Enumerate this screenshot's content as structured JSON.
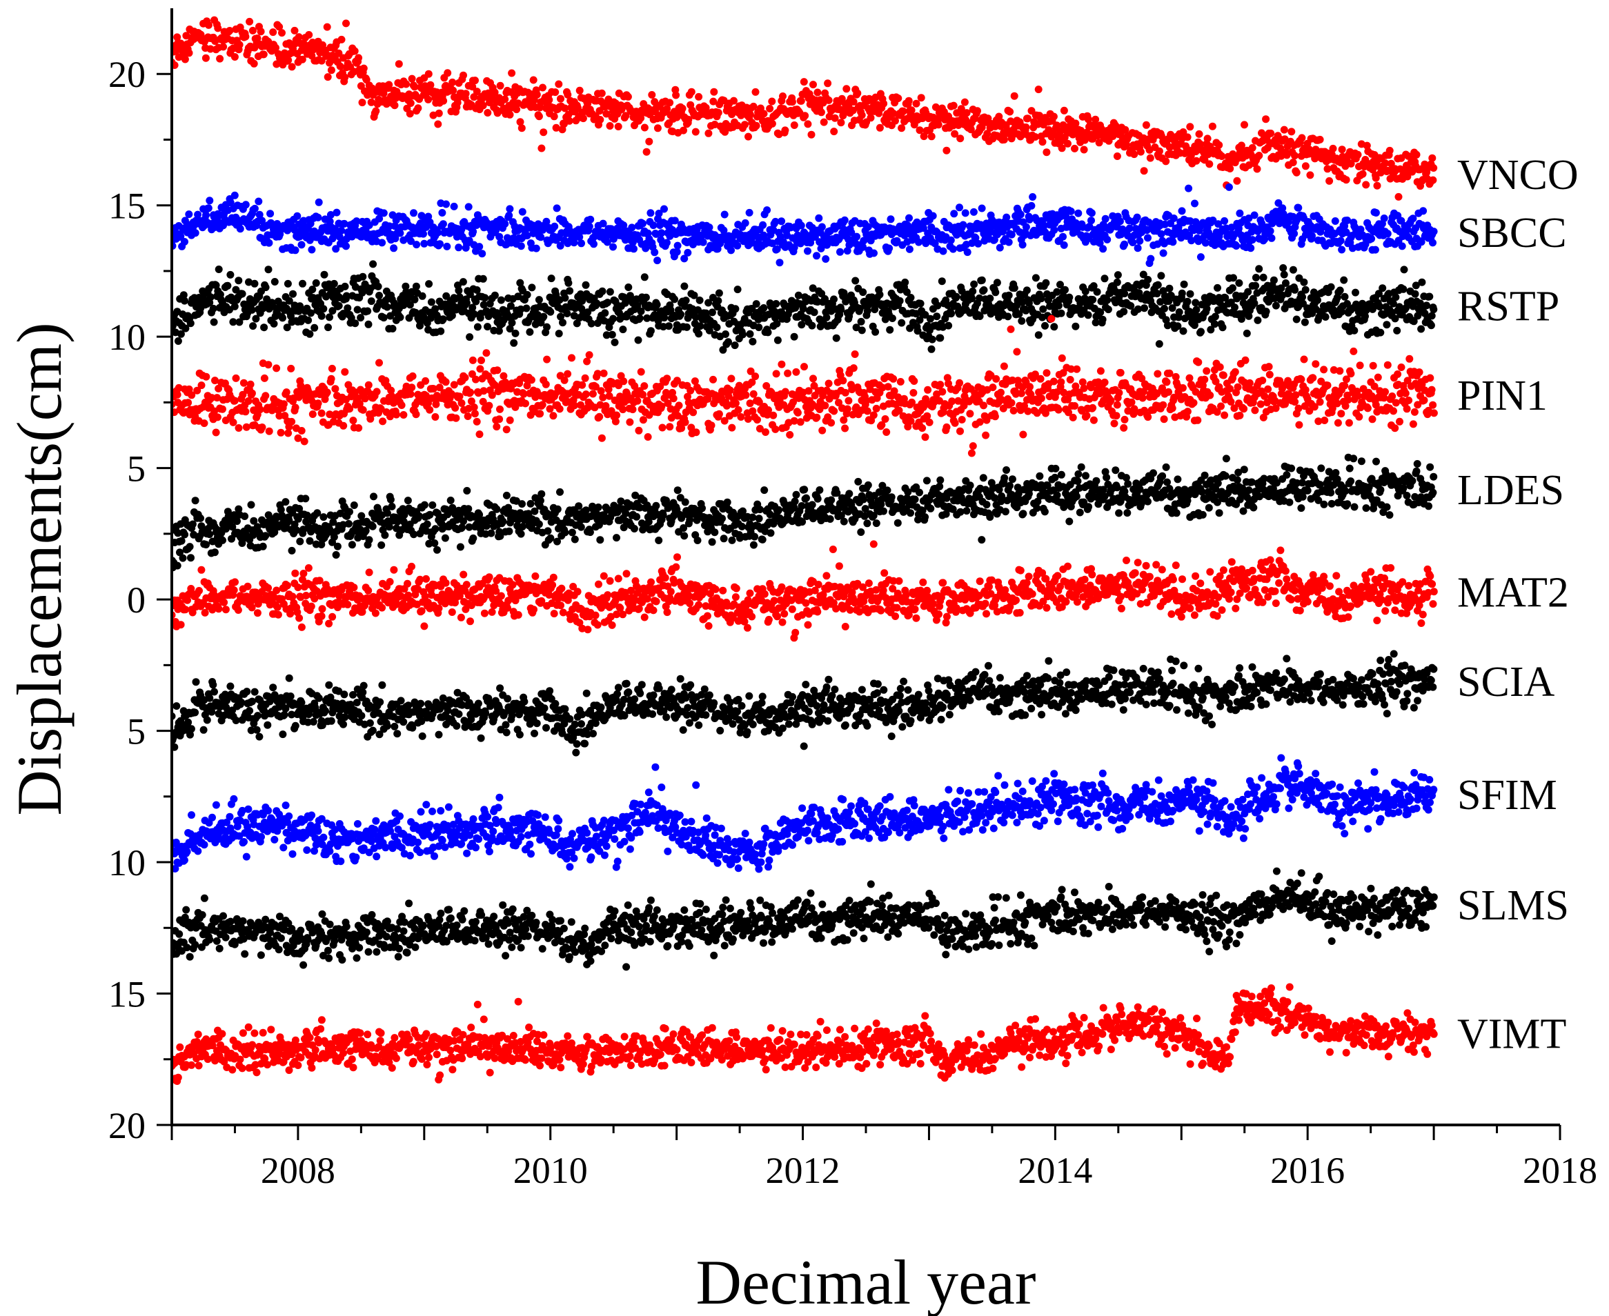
{
  "chart_data": {
    "type": "scatter",
    "title": "",
    "xlabel": "Decimal year",
    "ylabel": "Displacements(cm)",
    "xlim": [
      2007.0,
      2018.0
    ],
    "ylim": [
      -20,
      22.5
    ],
    "y_inverted_display": true,
    "x_tick_labels": [
      "2008",
      "2010",
      "2012",
      "2014",
      "2016",
      "2018"
    ],
    "x_ticks": [
      2008,
      2010,
      2012,
      2014,
      2016,
      2018
    ],
    "y_tick_labels": [
      "20",
      "15",
      "10",
      "5",
      "0",
      "5",
      "10",
      "15",
      "20"
    ],
    "y_ticks": [
      20,
      15,
      10,
      5,
      0,
      -5,
      -10,
      -15,
      -20
    ],
    "grid": false,
    "data_range_x": [
      2007.0,
      2017.0
    ],
    "series": [
      {
        "name": "VNCO",
        "color": "#ff0000",
        "noise": 0.35,
        "x": [
          2007.0,
          2007.2,
          2007.35,
          2007.8,
          2008.3,
          2008.45,
          2008.55,
          2009.0,
          2009.5,
          2010.0,
          2011.0,
          2011.8,
          2012.0,
          2012.5,
          2013.0,
          2013.5,
          2014.0,
          2014.5,
          2015.0,
          2015.4,
          2015.7,
          2016.0,
          2016.5,
          2017.0
        ],
        "y": [
          20.8,
          21.6,
          21.4,
          21.0,
          20.7,
          20.5,
          19.2,
          19.3,
          19.1,
          18.8,
          18.5,
          18.3,
          18.9,
          18.7,
          18.3,
          18.0,
          17.8,
          17.6,
          17.3,
          16.6,
          17.5,
          17.0,
          16.6,
          16.2
        ]
      },
      {
        "name": "SBCC",
        "color": "#0000ff",
        "noise": 0.35,
        "x": [
          2007.0,
          2007.3,
          2008.0,
          2009.0,
          2010.0,
          2011.0,
          2012.0,
          2013.0,
          2014.0,
          2015.0,
          2015.5,
          2015.8,
          2016.2,
          2017.0
        ],
        "y": [
          13.9,
          14.6,
          14.0,
          14.1,
          14.0,
          13.8,
          13.8,
          14.0,
          14.2,
          14.0,
          13.8,
          14.6,
          13.9,
          14.0
        ]
      },
      {
        "name": "RSTP",
        "color": "#000000",
        "noise": 0.45,
        "x": [
          2007.0,
          2007.3,
          2008.0,
          2008.5,
          2009.0,
          2010.0,
          2011.0,
          2011.3,
          2012.0,
          2012.8,
          2013.0,
          2013.2,
          2014.0,
          2014.8,
          2015.0,
          2015.8,
          2016.2,
          2017.0
        ],
        "y": [
          10.4,
          11.6,
          11.1,
          11.5,
          11.0,
          11.1,
          11.0,
          10.6,
          11.0,
          11.3,
          10.5,
          11.3,
          11.2,
          11.6,
          10.9,
          11.8,
          11.0,
          11.2
        ]
      },
      {
        "name": "PIN1",
        "color": "#ff0000",
        "noise": 0.55,
        "x": [
          2007.0,
          2008.0,
          2009.0,
          2010.0,
          2011.0,
          2012.0,
          2013.0,
          2014.0,
          2015.0,
          2016.0,
          2017.0
        ],
        "y": [
          7.5,
          7.4,
          7.7,
          7.8,
          7.5,
          7.6,
          7.4,
          7.8,
          7.8,
          7.9,
          7.8
        ]
      },
      {
        "name": "LDES",
        "color": "#000000",
        "noise": 0.4,
        "x": [
          2007.0,
          2007.2,
          2008.0,
          2009.0,
          2010.0,
          2011.0,
          2011.5,
          2012.0,
          2013.0,
          2013.15,
          2014.0,
          2015.0,
          2016.0,
          2017.0
        ],
        "y": [
          2.0,
          2.6,
          2.8,
          3.0,
          3.1,
          3.3,
          2.9,
          3.4,
          3.8,
          3.7,
          4.2,
          4.0,
          4.3,
          4.2
        ]
      },
      {
        "name": "MAT2",
        "color": "#ff0000",
        "noise": 0.4,
        "x": [
          2007.0,
          2007.2,
          2008.0,
          2009.0,
          2010.0,
          2010.2,
          2010.5,
          2011.0,
          2011.3,
          2012.0,
          2013.0,
          2014.0,
          2014.8,
          2015.0,
          2015.7,
          2016.2,
          2017.0
        ],
        "y": [
          -0.4,
          0.1,
          0.0,
          0.1,
          0.3,
          -0.4,
          0.0,
          0.3,
          -0.3,
          0.0,
          0.0,
          0.3,
          0.7,
          0.0,
          0.8,
          0.0,
          0.3
        ]
      },
      {
        "name": "SCIA",
        "color": "#000000",
        "noise": 0.4,
        "x": [
          2007.0,
          2007.2,
          2008.0,
          2009.0,
          2010.0,
          2010.2,
          2010.5,
          2011.0,
          2011.8,
          2012.0,
          2013.0,
          2013.2,
          2014.0,
          2014.8,
          2015.3,
          2015.7,
          2016.2,
          2017.0
        ],
        "y": [
          -4.9,
          -4.1,
          -4.1,
          -4.3,
          -4.2,
          -4.9,
          -4.0,
          -3.9,
          -4.6,
          -4.0,
          -4.0,
          -3.5,
          -3.6,
          -3.3,
          -3.8,
          -3.2,
          -3.5,
          -3.1
        ]
      },
      {
        "name": "SFIM",
        "color": "#0000ff",
        "noise": 0.4,
        "x": [
          2007.0,
          2007.2,
          2007.8,
          2008.4,
          2009.0,
          2010.0,
          2010.2,
          2010.8,
          2011.2,
          2011.6,
          2012.0,
          2012.5,
          2013.0,
          2013.3,
          2014.0,
          2014.5,
          2015.0,
          2015.4,
          2015.8,
          2016.3,
          2017.0
        ],
        "y": [
          -9.8,
          -9.0,
          -8.5,
          -9.2,
          -8.8,
          -8.9,
          -9.4,
          -8.2,
          -9.3,
          -9.6,
          -8.5,
          -8.5,
          -8.3,
          -8.0,
          -7.6,
          -7.9,
          -7.7,
          -8.2,
          -7.0,
          -7.8,
          -7.4
        ]
      },
      {
        "name": "SLMS",
        "color": "#000000",
        "noise": 0.4,
        "x": [
          2007.0,
          2007.2,
          2008.0,
          2009.0,
          2010.0,
          2010.3,
          2010.5,
          2011.0,
          2012.0,
          2013.0,
          2013.15,
          2014.0,
          2015.0,
          2015.3,
          2015.8,
          2016.2,
          2017.0
        ],
        "y": [
          -13.3,
          -12.3,
          -12.9,
          -12.6,
          -12.5,
          -13.4,
          -12.4,
          -12.4,
          -12.2,
          -12.0,
          -12.8,
          -12.0,
          -11.9,
          -12.5,
          -11.2,
          -11.9,
          -11.6
        ]
      },
      {
        "name": "VIMT",
        "color": "#ff0000",
        "noise": 0.35,
        "x": [
          2007.0,
          2007.2,
          2008.0,
          2009.0,
          2010.0,
          2011.0,
          2012.0,
          2013.0,
          2013.15,
          2014.0,
          2014.8,
          2015.0,
          2015.35,
          2015.45,
          2015.9,
          2016.2,
          2017.0
        ],
        "y": [
          -17.8,
          -17.1,
          -17.2,
          -17.0,
          -17.2,
          -17.1,
          -17.1,
          -16.9,
          -17.6,
          -16.7,
          -16.1,
          -16.6,
          -17.5,
          -15.6,
          -15.6,
          -16.5,
          -16.5
        ]
      }
    ]
  }
}
